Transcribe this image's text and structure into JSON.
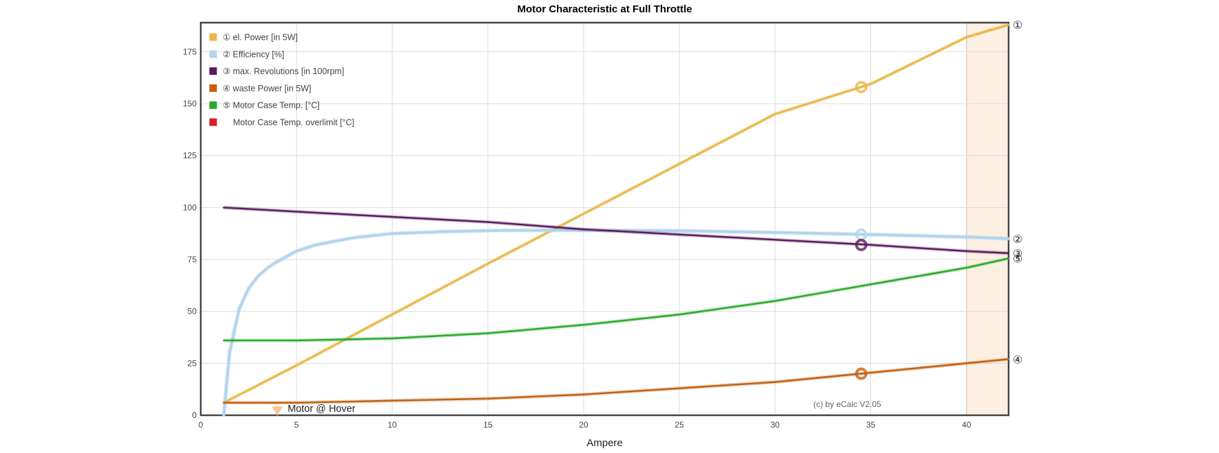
{
  "chart_data": {
    "type": "line",
    "title": "Motor Characteristic at Full Throttle",
    "xlabel": "Ampere",
    "ylabel": "",
    "xlim": [
      0,
      42.2
    ],
    "ylim": [
      0,
      189
    ],
    "x_ticks": [
      0,
      5,
      10,
      15,
      20,
      25,
      30,
      35,
      40
    ],
    "y_ticks": [
      0,
      25,
      50,
      75,
      100,
      125,
      150,
      175
    ],
    "grid": true,
    "legend_position": "top-left",
    "limit_band": {
      "from": 40,
      "to": 42.2,
      "fill": "#fdf0e3",
      "edge": "#e3b48f"
    },
    "series": [
      {
        "name": "① el. Power [in 5W]",
        "marker": "①",
        "color": "#e8b84a",
        "x": [
          1.2,
          5,
          10,
          15,
          20,
          25,
          30,
          35,
          40,
          42.2
        ],
        "y": [
          6,
          24,
          48.5,
          73,
          97,
          121,
          145,
          159.5,
          182,
          188
        ],
        "highlight": {
          "x": 34.5,
          "y": 158
        }
      },
      {
        "name": "② Efficiency [%]",
        "marker": "②",
        "color": "#b3d4ec",
        "x": [
          1.2,
          1.5,
          2,
          2.5,
          3,
          3.5,
          4,
          5,
          6,
          8,
          10,
          13,
          16,
          20,
          25,
          30,
          35,
          40,
          42.2
        ],
        "y": [
          0,
          30,
          51,
          61,
          67,
          71,
          74,
          79,
          82,
          85.5,
          87.5,
          88.5,
          89,
          89,
          88.8,
          88,
          87,
          85.8,
          85
        ],
        "highlight": {
          "x": 34.5,
          "y": 87
        }
      },
      {
        "name": "③ max. Revolutions [in 100rpm]",
        "marker": "③",
        "color": "#5a1c5e",
        "x": [
          1.2,
          5,
          10,
          15,
          20,
          25,
          30,
          35,
          40,
          42.2
        ],
        "y": [
          100,
          98,
          95.5,
          93,
          89.5,
          87,
          84.5,
          82,
          79,
          78
        ],
        "highlight": {
          "x": 34.5,
          "y": 82
        }
      },
      {
        "name": "④ waste Power [in 5W]",
        "marker": "④",
        "color": "#c4600f",
        "x": [
          1.2,
          5,
          10,
          15,
          20,
          25,
          30,
          35,
          40,
          42.2
        ],
        "y": [
          6,
          6,
          7,
          8,
          10,
          13,
          16,
          20.5,
          25,
          27
        ],
        "highlight": {
          "x": 34.5,
          "y": 20
        }
      },
      {
        "name": "⑤ Motor Case Temp. [°C]",
        "marker": "⑤",
        "color": "#2aaa2a",
        "x": [
          1.2,
          5,
          10,
          15,
          20,
          25,
          30,
          35,
          40,
          42.2
        ],
        "y": [
          36,
          36,
          37,
          39.5,
          43.5,
          48.5,
          55,
          63,
          71,
          75.5
        ],
        "highlight": null
      },
      {
        "name": "Motor Case Temp. overlimit [°C]",
        "marker": "",
        "color": "#d2202a",
        "x": [],
        "y": [],
        "highlight": null
      }
    ],
    "annotations": [
      {
        "text": "Motor @ Hover",
        "x": 4,
        "y": 3,
        "marker_color": "#f7c891"
      },
      {
        "text": "(c) by eCalc  V2.05",
        "x": 32,
        "y": 5
      }
    ]
  }
}
